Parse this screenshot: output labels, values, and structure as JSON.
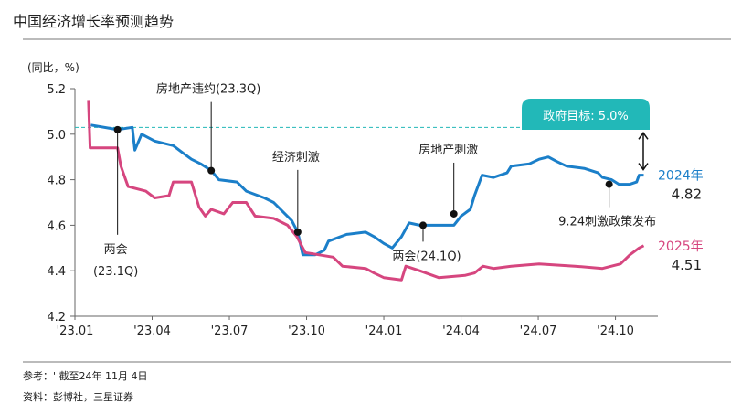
{
  "title": "中国经济增长率预测趋势",
  "unit_label": "(同比，%)",
  "footnote": "参考：' 截至24年 11月 4日",
  "source": "资料：彭博社，三星证券",
  "colors": {
    "series_2024": "#1b7fc9",
    "series_2025": "#d6467f",
    "target": "#22b8b8",
    "axis": "#666666"
  },
  "chart_data": {
    "type": "line",
    "title": "中国经济增长率预测趋势",
    "ylabel": "(同比，%)",
    "ylim": [
      4.2,
      5.2
    ],
    "yticks": [
      "4.2",
      "4.4",
      "4.6",
      "4.8",
      "5.0",
      "5.2"
    ],
    "xlim": [
      "2023-01-01",
      "2024-11-15"
    ],
    "xticks": [
      {
        "date": "2023-01-01",
        "label": "'23.01"
      },
      {
        "date": "2023-04-01",
        "label": "'23.04"
      },
      {
        "date": "2023-07-01",
        "label": "'23.07"
      },
      {
        "date": "2023-10-01",
        "label": "'23.10"
      },
      {
        "date": "2024-01-01",
        "label": "'24.01"
      },
      {
        "date": "2024-04-01",
        "label": "'24.04"
      },
      {
        "date": "2024-07-01",
        "label": "'24.07"
      },
      {
        "date": "2024-10-01",
        "label": "'24.10"
      }
    ],
    "grid": false,
    "target": {
      "value": 5.03,
      "label": "政府目标: 5.0%"
    },
    "series": [
      {
        "name": "2024年",
        "last_value": "4.82",
        "points": [
          [
            "2023-01-20",
            5.04
          ],
          [
            "2023-02-21",
            5.02
          ],
          [
            "2023-03-08",
            5.03
          ],
          [
            "2023-03-11",
            4.93
          ],
          [
            "2023-03-19",
            5.0
          ],
          [
            "2023-04-04",
            4.97
          ],
          [
            "2023-04-26",
            4.95
          ],
          [
            "2023-05-06",
            4.92
          ],
          [
            "2023-05-17",
            4.89
          ],
          [
            "2023-05-28",
            4.87
          ],
          [
            "2023-06-10",
            4.84
          ],
          [
            "2023-06-19",
            4.8
          ],
          [
            "2023-07-10",
            4.79
          ],
          [
            "2023-07-21",
            4.75
          ],
          [
            "2023-08-12",
            4.72
          ],
          [
            "2023-08-23",
            4.7
          ],
          [
            "2023-09-14",
            4.62
          ],
          [
            "2023-09-21",
            4.57
          ],
          [
            "2023-09-27",
            4.47
          ],
          [
            "2023-10-11",
            4.47
          ],
          [
            "2023-10-22",
            4.49
          ],
          [
            "2023-10-27",
            4.53
          ],
          [
            "2023-11-18",
            4.56
          ],
          [
            "2023-12-10",
            4.57
          ],
          [
            "2023-12-20",
            4.55
          ],
          [
            "2024-01-01",
            4.52
          ],
          [
            "2024-01-11",
            4.5
          ],
          [
            "2024-01-22",
            4.55
          ],
          [
            "2024-01-31",
            4.61
          ],
          [
            "2024-02-13",
            4.6
          ],
          [
            "2024-03-23",
            4.6
          ],
          [
            "2024-04-01",
            4.64
          ],
          [
            "2024-04-12",
            4.67
          ],
          [
            "2024-04-17",
            4.73
          ],
          [
            "2024-04-26",
            4.82
          ],
          [
            "2024-05-09",
            4.81
          ],
          [
            "2024-05-25",
            4.83
          ],
          [
            "2024-05-30",
            4.86
          ],
          [
            "2024-06-21",
            4.87
          ],
          [
            "2024-07-02",
            4.89
          ],
          [
            "2024-07-13",
            4.9
          ],
          [
            "2024-07-23",
            4.88
          ],
          [
            "2024-08-04",
            4.86
          ],
          [
            "2024-08-25",
            4.85
          ],
          [
            "2024-09-11",
            4.83
          ],
          [
            "2024-09-16",
            4.81
          ],
          [
            "2024-09-27",
            4.8
          ],
          [
            "2024-10-05",
            4.78
          ],
          [
            "2024-10-18",
            4.78
          ],
          [
            "2024-10-26",
            4.79
          ],
          [
            "2024-10-29",
            4.82
          ],
          [
            "2024-11-04",
            4.82
          ]
        ]
      },
      {
        "name": "2025年",
        "last_value": "4.51",
        "points": [
          [
            "2023-01-17",
            5.15
          ],
          [
            "2023-01-19",
            4.94
          ],
          [
            "2023-02-21",
            4.94
          ],
          [
            "2023-02-25",
            4.86
          ],
          [
            "2023-03-03",
            4.77
          ],
          [
            "2023-03-24",
            4.75
          ],
          [
            "2023-04-04",
            4.72
          ],
          [
            "2023-04-21",
            4.73
          ],
          [
            "2023-04-26",
            4.79
          ],
          [
            "2023-05-17",
            4.79
          ],
          [
            "2023-05-26",
            4.68
          ],
          [
            "2023-06-03",
            4.64
          ],
          [
            "2023-06-10",
            4.67
          ],
          [
            "2023-06-25",
            4.65
          ],
          [
            "2023-07-05",
            4.7
          ],
          [
            "2023-07-21",
            4.7
          ],
          [
            "2023-08-01",
            4.64
          ],
          [
            "2023-08-23",
            4.63
          ],
          [
            "2023-09-09",
            4.6
          ],
          [
            "2023-09-20",
            4.55
          ],
          [
            "2023-09-30",
            4.48
          ],
          [
            "2023-10-16",
            4.47
          ],
          [
            "2023-11-02",
            4.46
          ],
          [
            "2023-11-13",
            4.42
          ],
          [
            "2023-12-10",
            4.41
          ],
          [
            "2023-12-20",
            4.39
          ],
          [
            "2024-01-01",
            4.37
          ],
          [
            "2024-01-22",
            4.36
          ],
          [
            "2024-01-27",
            4.42
          ],
          [
            "2024-02-13",
            4.4
          ],
          [
            "2024-03-05",
            4.37
          ],
          [
            "2024-04-06",
            4.38
          ],
          [
            "2024-04-17",
            4.39
          ],
          [
            "2024-04-27",
            4.42
          ],
          [
            "2024-05-09",
            4.41
          ],
          [
            "2024-05-30",
            4.42
          ],
          [
            "2024-07-02",
            4.43
          ],
          [
            "2024-08-14",
            4.42
          ],
          [
            "2024-09-16",
            4.41
          ],
          [
            "2024-10-07",
            4.43
          ],
          [
            "2024-10-18",
            4.47
          ],
          [
            "2024-10-29",
            4.5
          ],
          [
            "2024-11-04",
            4.51
          ]
        ]
      }
    ],
    "annotations": [
      {
        "label": "两会",
        "sublabel": "(23.1Q)",
        "date": "2023-02-21",
        "value": 5.02,
        "direction": "down"
      },
      {
        "label": "房地产违约(23.3Q)",
        "date": "2023-06-10",
        "value": 4.84,
        "direction": "up"
      },
      {
        "label": "经济刺激",
        "date": "2023-09-21",
        "value": 4.57,
        "direction": "up"
      },
      {
        "label": "两会(24.1Q)",
        "date": "2024-02-17",
        "value": 4.6,
        "direction": "down"
      },
      {
        "label": "房地产刺激",
        "date": "2024-03-23",
        "value": 4.65,
        "direction": "up"
      },
      {
        "label": "9.24刺激政策发布",
        "date": "2024-09-24",
        "value": 4.78,
        "direction": "down"
      }
    ]
  }
}
